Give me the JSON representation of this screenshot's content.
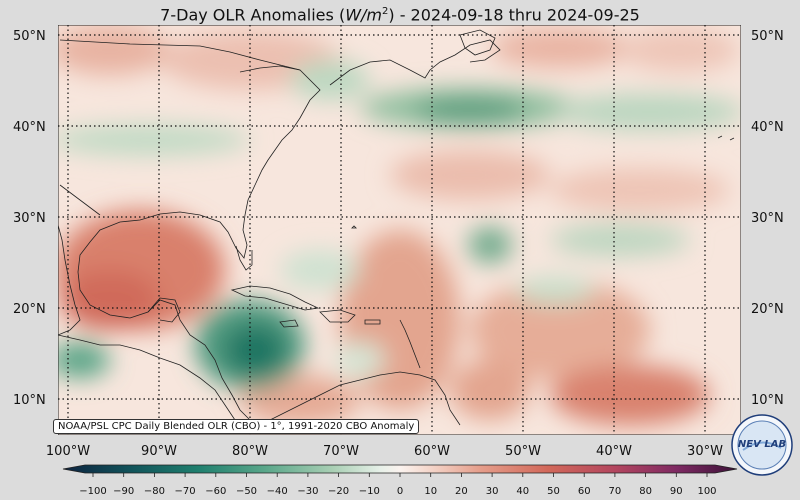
{
  "title_prefix": "7-Day OLR Anomalies (",
  "title_unit_base": "W/m",
  "title_unit_exp": "2",
  "title_suffix": ") - 2024-09-18 thru 2024-09-25",
  "source_note": "NOAA/PSL CPC Daily Blended OLR (CBO) - 1°, 1991-2020 CBO Anomaly",
  "logo_text": "NEV LAB",
  "latitude_labels": [
    "50°N",
    "40°N",
    "30°N",
    "20°N",
    "10°N"
  ],
  "longitude_labels": [
    "100°W",
    "90°W",
    "80°W",
    "70°W",
    "60°W",
    "50°W",
    "40°W",
    "30°W"
  ],
  "colorbar": {
    "ticks": [
      -100,
      -90,
      -80,
      -70,
      -60,
      -50,
      -40,
      -30,
      -20,
      -10,
      0,
      10,
      20,
      30,
      40,
      50,
      60,
      70,
      80,
      90,
      100
    ],
    "negative_color_stops": [
      "#0d2340",
      "#11535a",
      "#1f7f6e",
      "#5aa78a",
      "#a9cfb4",
      "#e6f0e8"
    ],
    "neutral_color": "#fbf3ef",
    "positive_color_stops": [
      "#f3d2c6",
      "#e59d8a",
      "#d2685a",
      "#b3465f",
      "#7f2a63",
      "#3c1238"
    ]
  },
  "map": {
    "ocean_color": "#f7ece6",
    "extent": {
      "lon_min": -101,
      "lon_max": -26,
      "lat_min": 6,
      "lat_max": 51
    }
  }
}
